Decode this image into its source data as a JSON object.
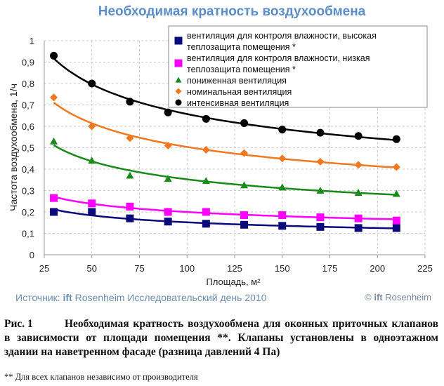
{
  "chart_data": {
    "type": "scatter",
    "title": "Необходимая кратность воздухообмена",
    "xlabel": "Площадь, м²",
    "ylabel": "Частота воздухообмена, 1/ч",
    "xlim": [
      25,
      225
    ],
    "ylim": [
      0,
      1
    ],
    "xticks": [
      "25",
      "50",
      "75",
      "100",
      "125",
      "150",
      "175",
      "200",
      "225"
    ],
    "xtick_values": [
      25,
      50,
      75,
      100,
      125,
      150,
      175,
      200,
      225
    ],
    "yticks": [
      "0",
      "0,1",
      "0,2",
      "0,3",
      "0,4",
      "0,5",
      "0,6",
      "0,7",
      "0,8",
      "0,9",
      "1"
    ],
    "ytick_values": [
      0,
      0.1,
      0.2,
      0.3,
      0.4,
      0.5,
      0.6,
      0.7,
      0.8,
      0.9,
      1
    ],
    "grid": true,
    "legend_placement": "top-right",
    "x": [
      30,
      50,
      70,
      90,
      110,
      130,
      150,
      170,
      190,
      210
    ],
    "series": [
      {
        "name_line1": "вентиляция для контроля влажности, высокая",
        "name_line2": "теплозащита помещения *",
        "color": "#0a0a7a",
        "marker": "square",
        "values": [
          0.2,
          0.2,
          0.17,
          0.155,
          0.145,
          0.14,
          0.135,
          0.13,
          0.125,
          0.125
        ]
      },
      {
        "name_line1": "вентиляция для контроля влажности, низкая",
        "name_line2": "теплозащита помещения *",
        "color": "#ff00ff",
        "marker": "square",
        "values": [
          0.265,
          0.24,
          0.225,
          0.2,
          0.2,
          0.185,
          0.185,
          0.175,
          0.17,
          0.16
        ]
      },
      {
        "name_line1": "пониженная вентиляция",
        "name_line2": "",
        "color": "#1a8a1a",
        "marker": "triangle",
        "values": [
          0.53,
          0.44,
          0.37,
          0.355,
          0.345,
          0.325,
          0.315,
          0.3,
          0.29,
          0.285
        ]
      },
      {
        "name_line1": "номинальная вентиляция",
        "name_line2": "",
        "color": "#f07820",
        "marker": "diamond",
        "values": [
          0.735,
          0.6,
          0.545,
          0.51,
          0.49,
          0.475,
          0.45,
          0.435,
          0.42,
          0.41
        ]
      },
      {
        "name_line1": "интенсивная вентиляция",
        "name_line2": "",
        "color": "#000000",
        "marker": "circle",
        "values": [
          0.93,
          0.8,
          0.715,
          0.665,
          0.635,
          0.615,
          0.585,
          0.57,
          0.555,
          0.54
        ]
      }
    ]
  },
  "source": {
    "prefix": "Источник: ",
    "brand": "ift",
    "rest": " Rosenheim Исследовательский день 2010"
  },
  "copyright": {
    "symbol": "© ",
    "brand": "ift",
    "rest": " Rosenheim"
  },
  "caption": {
    "label": "Рис. 1",
    "text": "Необходимая кратность воздухообмена для оконных приточных клапанов в зависимости от площади помещения **. Клапаны установлены в одноэтажном здании на наветренном фасаде (разница давлений 4 Па)"
  },
  "footnote": "** Для всех клапанов независимо от производителя"
}
